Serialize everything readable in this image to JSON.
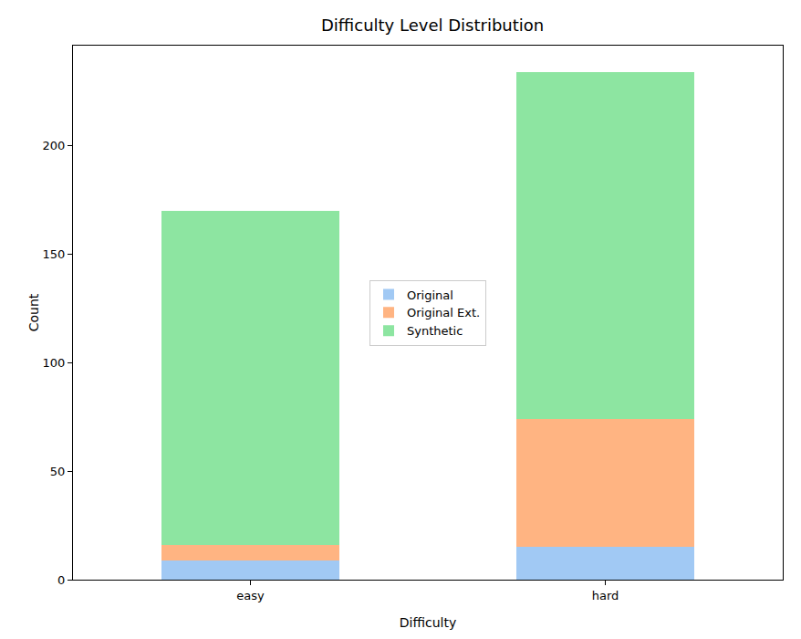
{
  "chart_data": {
    "type": "bar",
    "title": "Difficulty Level Distribution",
    "x_label": "Difficulty",
    "y_label": "Count",
    "categories": [
      "easy",
      "hard"
    ],
    "series": [
      {
        "name": "Original",
        "color": "#a1c9f4",
        "values": [
          9,
          15
        ]
      },
      {
        "name": "Original Ext.",
        "color": "#ffb482",
        "values": [
          7,
          59
        ]
      },
      {
        "name": "Synthetic",
        "color": "#8de5a1",
        "values": [
          154,
          160
        ]
      }
    ],
    "stacked": true,
    "ylim": [
      0,
      246
    ],
    "yticks": [
      0,
      50,
      100,
      150,
      200
    ],
    "grid": false,
    "legend": "center"
  }
}
